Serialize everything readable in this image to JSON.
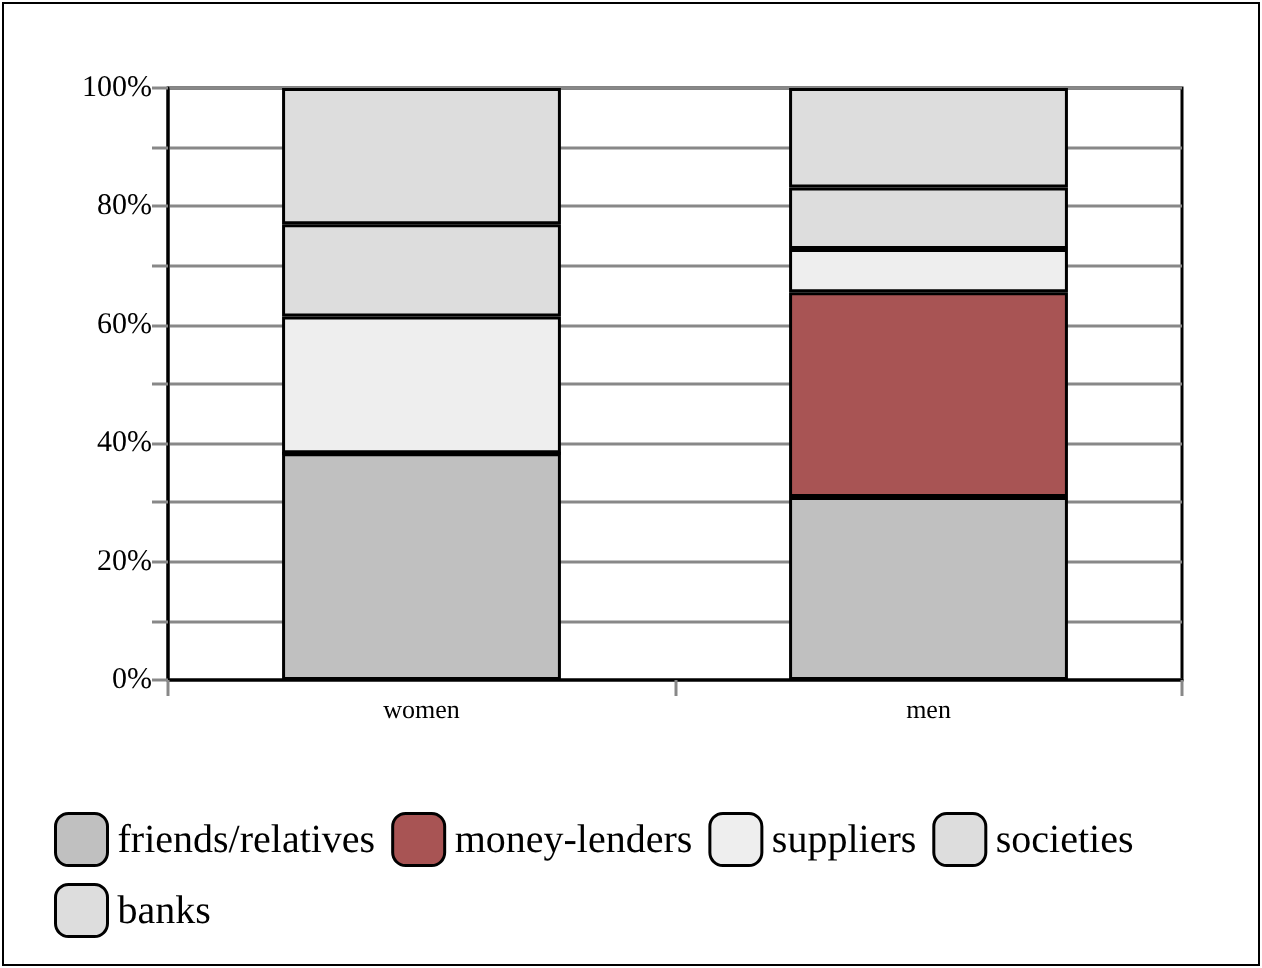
{
  "chart_data": {
    "type": "bar",
    "stacked": true,
    "categories": [
      "women",
      "men"
    ],
    "series": [
      {
        "name": "friends/relatives",
        "color": "#c0c0c0",
        "values": [
          38.3,
          30.9
        ]
      },
      {
        "name": "money-lenders",
        "color": "#a85454",
        "values": [
          0,
          34.6
        ]
      },
      {
        "name": "suppliers",
        "color": "#eeeeee",
        "values": [
          23.1,
          7.3
        ]
      },
      {
        "name": "societies",
        "color": "#dddddd",
        "values": [
          15.6,
          10.4
        ]
      },
      {
        "name": "banks",
        "color": "#dddddd",
        "values": [
          23.0,
          16.8
        ]
      }
    ],
    "ylim": [
      0,
      100
    ],
    "yticks": [
      {
        "value": 0,
        "label": "0%"
      },
      {
        "value": 10,
        "label": null
      },
      {
        "value": 20,
        "label": "20%"
      },
      {
        "value": 30,
        "label": null
      },
      {
        "value": 40,
        "label": "40%"
      },
      {
        "value": 50,
        "label": null
      },
      {
        "value": 60,
        "label": "60%"
      },
      {
        "value": 70,
        "label": null
      },
      {
        "value": 80,
        "label": "80%"
      },
      {
        "value": 90,
        "label": null
      },
      {
        "value": 100,
        "label": "100%"
      }
    ],
    "grid": "y",
    "legend": "bottom"
  }
}
